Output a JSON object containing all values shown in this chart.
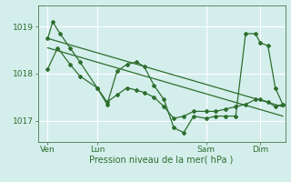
{
  "xlabel": "Pression niveau de la mer( hPa )",
  "bg_color": "#d4eeec",
  "line_color": "#2d6e2d",
  "grid_color": "#ffffff",
  "ylim": [
    1016.55,
    1019.45
  ],
  "xlim": [
    0,
    100
  ],
  "yticks": [
    1017,
    1018,
    1019
  ],
  "ytick_labels": [
    "1017",
    "1018",
    "1019"
  ],
  "xtick_positions": [
    4,
    24,
    68,
    90
  ],
  "xtick_labels": [
    "Ven",
    "Lun",
    "Sam",
    "Dim"
  ],
  "vline_positions": [
    4,
    24,
    68,
    90
  ],
  "series2_x": [
    4,
    6,
    9,
    13,
    17,
    24,
    28,
    32,
    36,
    40,
    43,
    47,
    51,
    55,
    59,
    63,
    68,
    72,
    76,
    80,
    84,
    88,
    90,
    93,
    96,
    99
  ],
  "series2_y": [
    1018.75,
    1019.1,
    1018.85,
    1018.55,
    1018.25,
    1017.7,
    1017.35,
    1018.05,
    1018.2,
    1018.25,
    1018.15,
    1017.75,
    1017.45,
    1016.85,
    1016.75,
    1017.1,
    1017.05,
    1017.1,
    1017.1,
    1017.1,
    1018.85,
    1018.85,
    1018.65,
    1018.6,
    1017.7,
    1017.35
  ],
  "series1_x": [
    4,
    8,
    13,
    17,
    24,
    28,
    32,
    36,
    40,
    43,
    47,
    51,
    55,
    59,
    63,
    68,
    72,
    76,
    80,
    84,
    88,
    90,
    93,
    96,
    99
  ],
  "series1_y": [
    1018.1,
    1018.55,
    1018.2,
    1017.95,
    1017.7,
    1017.4,
    1017.55,
    1017.7,
    1017.65,
    1017.6,
    1017.5,
    1017.3,
    1017.05,
    1017.1,
    1017.2,
    1017.2,
    1017.2,
    1017.25,
    1017.3,
    1017.35,
    1017.45,
    1017.45,
    1017.4,
    1017.3,
    1017.35
  ],
  "trend_x": [
    4,
    99
  ],
  "trend_y": [
    1018.75,
    1017.3
  ],
  "trend2_x": [
    4,
    99
  ],
  "trend2_y": [
    1018.55,
    1017.1
  ]
}
